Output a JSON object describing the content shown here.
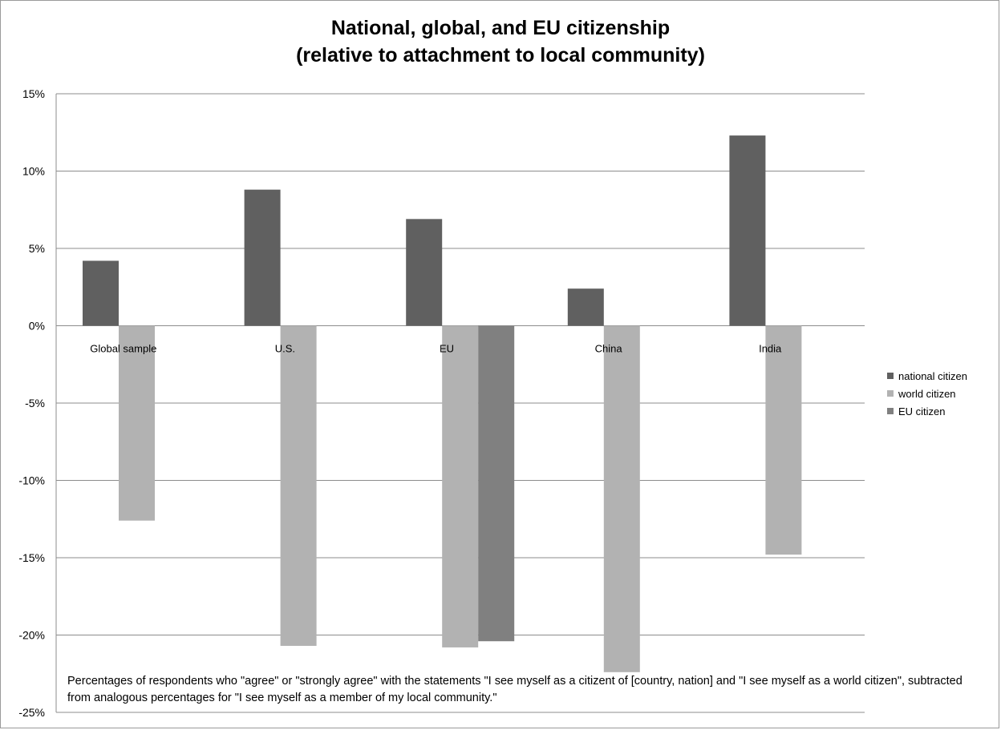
{
  "chart_data": {
    "type": "bar",
    "title_line1": "National, global, and EU citizenship",
    "title_line2": "(relative to attachment to local community)",
    "categories": [
      "Global sample",
      "U.S.",
      "EU",
      "China",
      "India"
    ],
    "series": [
      {
        "name": "national citizen",
        "color": "#606060",
        "values": [
          4.2,
          8.8,
          6.9,
          2.4,
          12.3
        ]
      },
      {
        "name": "world citizen",
        "color": "#b2b2b2",
        "values": [
          -12.6,
          -20.7,
          -20.8,
          -22.4,
          -14.8
        ]
      },
      {
        "name": "EU citizen",
        "color": "#808080",
        "values": [
          null,
          null,
          -20.4,
          null,
          null
        ]
      }
    ],
    "ylim": [
      -25,
      15
    ],
    "yticks": [
      15,
      10,
      5,
      0,
      -5,
      -10,
      -15,
      -20,
      -25
    ],
    "ytick_labels": [
      "15%",
      "10%",
      "5%",
      "0%",
      "-5%",
      "-10%",
      "-15%",
      "-20%",
      "-25%"
    ],
    "grid": true,
    "legend_position": "right",
    "annotation": "Percentages  of respondents who \"agree\" or \"strongly agree\" with the statements \"I see myself as a citizent of [country, nation] and \"I see myself as a world citizen\", subtracted from analogous percentages for \"I see myself as a member of my local community.\""
  }
}
